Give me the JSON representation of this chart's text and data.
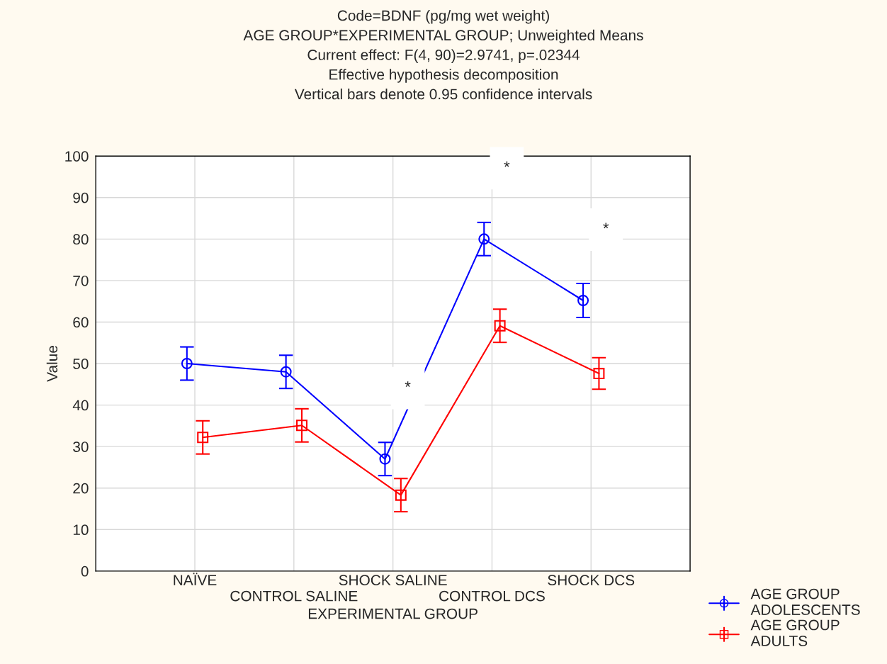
{
  "chart_data": {
    "type": "line",
    "title": "Code=BDNF (pg/mg wet weight)\nAGE GROUP*EXPERIMENTAL GROUP; Unweighted Means\nCurrent effect: F(4, 90)=2.9741, p=.02344\nEffective hypothesis decomposition\nVertical bars denote 0.95 confidence intervals",
    "xlabel": "EXPERIMENTAL GROUP",
    "ylabel": "Value",
    "categories": [
      "NAÏVE",
      "CONTROL SALINE",
      "SHOCK SALINE",
      "CONTROL DCS",
      "SHOCK DCS"
    ],
    "series": [
      {
        "name": "AGE GROUP\nADOLESCENTS",
        "color": "#0000ff",
        "marker": "circle",
        "values": [
          50,
          48,
          27,
          80,
          65.2
        ],
        "errors": [
          4,
          4,
          4,
          4,
          4.1
        ]
      },
      {
        "name": "AGE GROUP\nADULTS",
        "color": "#ff0000",
        "marker": "square",
        "values": [
          32.2,
          35.1,
          18.3,
          59.1,
          47.6
        ],
        "errors": [
          4,
          4,
          4,
          4,
          3.8
        ]
      }
    ],
    "annotations": [
      "*",
      "*",
      "*"
    ],
    "ylim": [
      0,
      100
    ],
    "yticks": [
      0,
      10,
      20,
      30,
      40,
      50,
      60,
      70,
      80,
      90,
      100
    ],
    "grid": true,
    "legend": "bottom right",
    "line_style": "solid"
  }
}
